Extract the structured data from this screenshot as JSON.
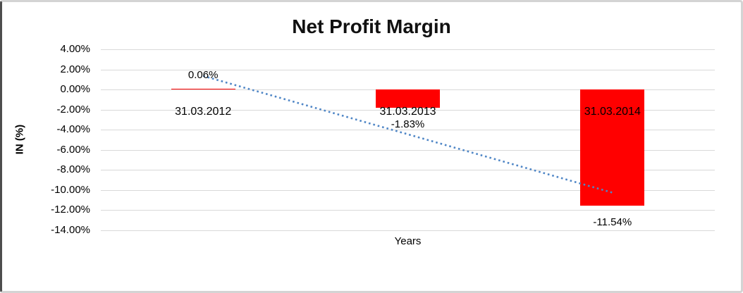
{
  "chart_data": {
    "type": "bar",
    "title": "Net Profit Margin",
    "xlabel": "Years",
    "ylabel": "IN (%)",
    "categories": [
      "31.03.2012",
      "31.03.2013",
      "31.03.2014"
    ],
    "values": [
      0.06,
      -1.83,
      -11.54
    ],
    "data_labels": [
      "0.06%",
      "-1.83%",
      "-11.54%"
    ],
    "ylim": [
      4,
      -14
    ],
    "ytick_step": 2,
    "ytick_labels": [
      "4.00%",
      "2.00%",
      "0.00%",
      "-2.00%",
      "-4.00%",
      "-6.00%",
      "-8.00%",
      "-10.00%",
      "-12.00%",
      "-14.00%"
    ],
    "grid": true,
    "legend": "none",
    "bar_color": "#ff0000",
    "gridline_color": "#d9d9d9",
    "text_color": "#000000",
    "trendline": {
      "style": "dotted",
      "color": "#4f86c6",
      "start_value": 1.35,
      "end_value": -10.25
    }
  }
}
